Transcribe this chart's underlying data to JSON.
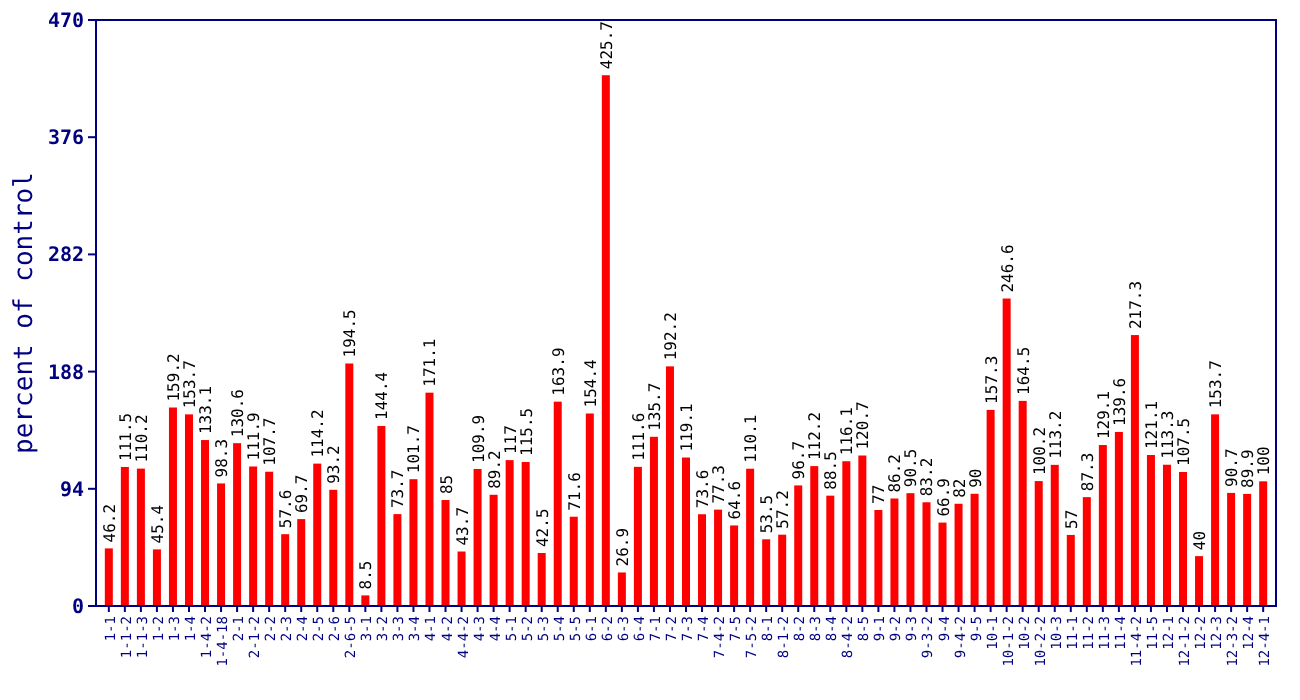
{
  "chart_data": {
    "type": "bar",
    "ylabel": "percent of control",
    "color": "#ff0000",
    "data_labels": true,
    "ylim": [
      0,
      470
    ],
    "yticks": [
      0,
      94,
      188,
      282,
      376,
      470
    ],
    "grid": false,
    "categories": [
      "1-1",
      "1-1-2",
      "1-1-3",
      "1-2",
      "1-3",
      "1-4",
      "1-4-2",
      "1-4-18",
      "2-1",
      "2-1-2",
      "2-2",
      "2-3",
      "2-4",
      "2-5",
      "2-6",
      "2-6-5",
      "3-1",
      "3-2",
      "3-3",
      "3-4",
      "4-1",
      "4-2",
      "4-4-2",
      "4-3",
      "4-4",
      "5-1",
      "5-2",
      "5-3",
      "5-4",
      "5-5",
      "6-1",
      "6-2",
      "6-3",
      "6-4",
      "7-1",
      "7-2",
      "7-3",
      "7-4",
      "7-4-2",
      "7-5",
      "7-5-2",
      "8-1",
      "8-1-2",
      "8-2",
      "8-3",
      "8-4",
      "8-4-2",
      "8-5",
      "9-1",
      "9-2",
      "9-3",
      "9-3-2",
      "9-4",
      "9-4-2",
      "9-5",
      "10-1",
      "10-1-2",
      "10-2",
      "10-2-2",
      "10-3",
      "11-1",
      "11-2",
      "11-3",
      "11-4",
      "11-4-2",
      "11-5",
      "12-1",
      "12-1-2",
      "12-2",
      "12-3",
      "12-3-2",
      "12-4",
      "12-4-1"
    ],
    "values": [
      46.2,
      111.5,
      110.2,
      45.4,
      159.2,
      153.7,
      133.1,
      98.3,
      130.6,
      111.9,
      107.7,
      57.6,
      69.7,
      114.2,
      93.2,
      194.5,
      8.5,
      144.4,
      73.7,
      101.7,
      171.1,
      85,
      43.7,
      109.9,
      89.2,
      117,
      115.5,
      42.5,
      163.9,
      71.6,
      154.4,
      425.7,
      26.9,
      111.6,
      135.7,
      192.2,
      119.1,
      73.6,
      77.3,
      64.6,
      110.1,
      53.5,
      57.2,
      96.7,
      112.2,
      88.5,
      116.1,
      120.7,
      77,
      86.2,
      90.5,
      83.2,
      66.9,
      82,
      90,
      157.3,
      246.6,
      164.5,
      100.2,
      113.2,
      57,
      87.3,
      129.1,
      139.6,
      217.3,
      121.1,
      113.3,
      107.5,
      40,
      153.7,
      90.7,
      89.9,
      100
    ]
  }
}
